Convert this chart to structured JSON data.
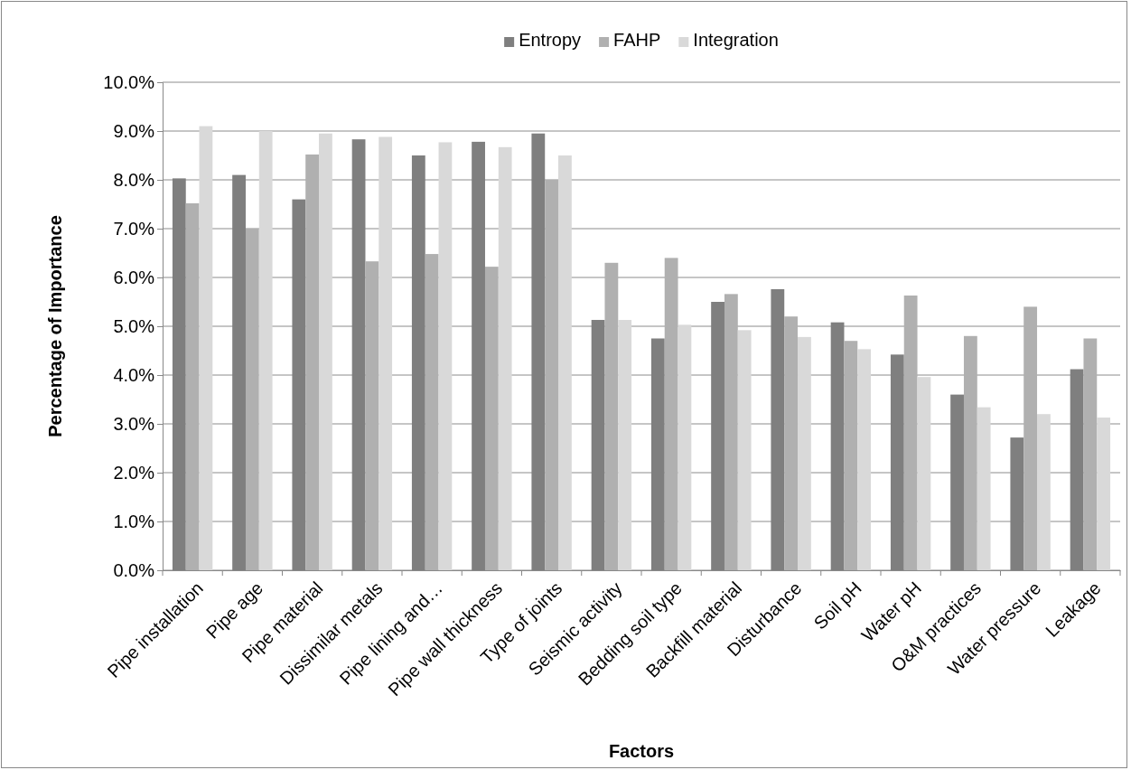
{
  "chart_data": {
    "type": "bar",
    "xlabel": "Factors",
    "ylabel": "Percentage of Importance",
    "categories": [
      "Pipe installation",
      "Pipe age",
      "Pipe material",
      "Dissimilar metals",
      "Pipe lining and…",
      "Pipe wall thickness",
      "Type of joints",
      "Seismic activity",
      "Bedding soil type",
      "Backfill material",
      "Disturbance",
      "Soil pH",
      "Water pH",
      "O&M practices",
      "Water pressure",
      "Leakage"
    ],
    "series": [
      {
        "name": "Entropy",
        "color": "#7f7f7f",
        "values": [
          8.03,
          8.1,
          7.6,
          8.83,
          8.5,
          8.78,
          8.95,
          5.13,
          4.75,
          5.5,
          5.76,
          5.08,
          4.42,
          3.6,
          2.72,
          4.12
        ]
      },
      {
        "name": "FAHP",
        "color": "#b0b0b0",
        "values": [
          7.52,
          7.0,
          8.52,
          6.33,
          6.48,
          6.22,
          8.0,
          6.3,
          6.4,
          5.66,
          5.2,
          4.7,
          5.63,
          4.8,
          5.4,
          4.75
        ]
      },
      {
        "name": "Integration",
        "color": "#d9d9d9",
        "values": [
          9.1,
          9.0,
          8.95,
          8.88,
          8.77,
          8.67,
          8.5,
          5.13,
          5.03,
          4.92,
          4.78,
          4.53,
          3.96,
          3.34,
          3.2,
          3.13
        ]
      }
    ],
    "ylim": [
      0,
      10
    ],
    "yticks": [
      {
        "value": 0,
        "label": "0.0%"
      },
      {
        "value": 1,
        "label": "1.0%"
      },
      {
        "value": 2,
        "label": "2.0%"
      },
      {
        "value": 3,
        "label": "3.0%"
      },
      {
        "value": 4,
        "label": "4.0%"
      },
      {
        "value": 5,
        "label": "5.0%"
      },
      {
        "value": 6,
        "label": "6.0%"
      },
      {
        "value": 7,
        "label": "7.0%"
      },
      {
        "value": 8,
        "label": "8.0%"
      },
      {
        "value": 9,
        "label": "9.0%"
      },
      {
        "value": 10,
        "label": "10.0%"
      }
    ],
    "grid": "y",
    "legend": "top"
  }
}
